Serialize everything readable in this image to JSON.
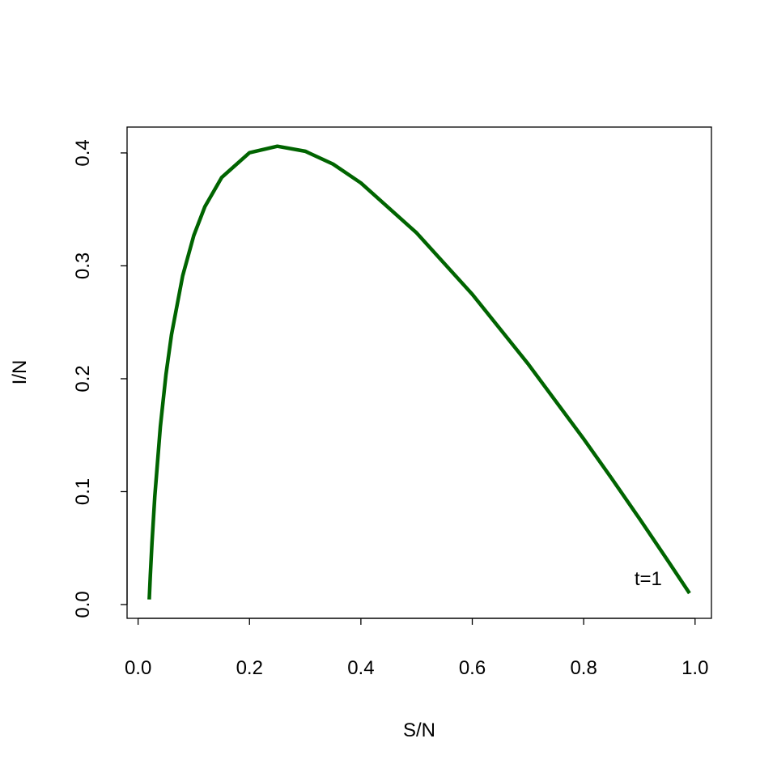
{
  "chart_data": {
    "type": "line",
    "x_label": "S/N",
    "y_label": "I/N",
    "annotation": "t=1",
    "series": [
      {
        "color": "#006400",
        "x": [
          0.99,
          0.95,
          0.9,
          0.85,
          0.8,
          0.7,
          0.6,
          0.5,
          0.4,
          0.35,
          0.3,
          0.25,
          0.2,
          0.15,
          0.12,
          0.1,
          0.08,
          0.06,
          0.05,
          0.04,
          0.03,
          0.025,
          0.022,
          0.02
        ],
        "values": [
          0.01,
          0.0397,
          0.0762,
          0.1119,
          0.1467,
          0.2133,
          0.2748,
          0.3292,
          0.3734,
          0.3901,
          0.4015,
          0.4059,
          0.4002,
          0.3782,
          0.3525,
          0.3269,
          0.2911,
          0.2392,
          0.2036,
          0.1578,
          0.0959,
          0.0553,
          0.0263,
          0.0045
        ]
      }
    ],
    "xlim": [
      -0.0198,
      1.0294
    ],
    "ylim": [
      -0.0122,
      0.4229
    ],
    "xticks": [
      {
        "value": 0,
        "label": "0.0"
      },
      0.2,
      0.4,
      0.6,
      0.8,
      {
        "value": 1,
        "label": "1.0"
      }
    ],
    "yticks": [
      {
        "value": 0,
        "label": "0.0"
      },
      0.1,
      0.2,
      0.3,
      0.4
    ]
  }
}
